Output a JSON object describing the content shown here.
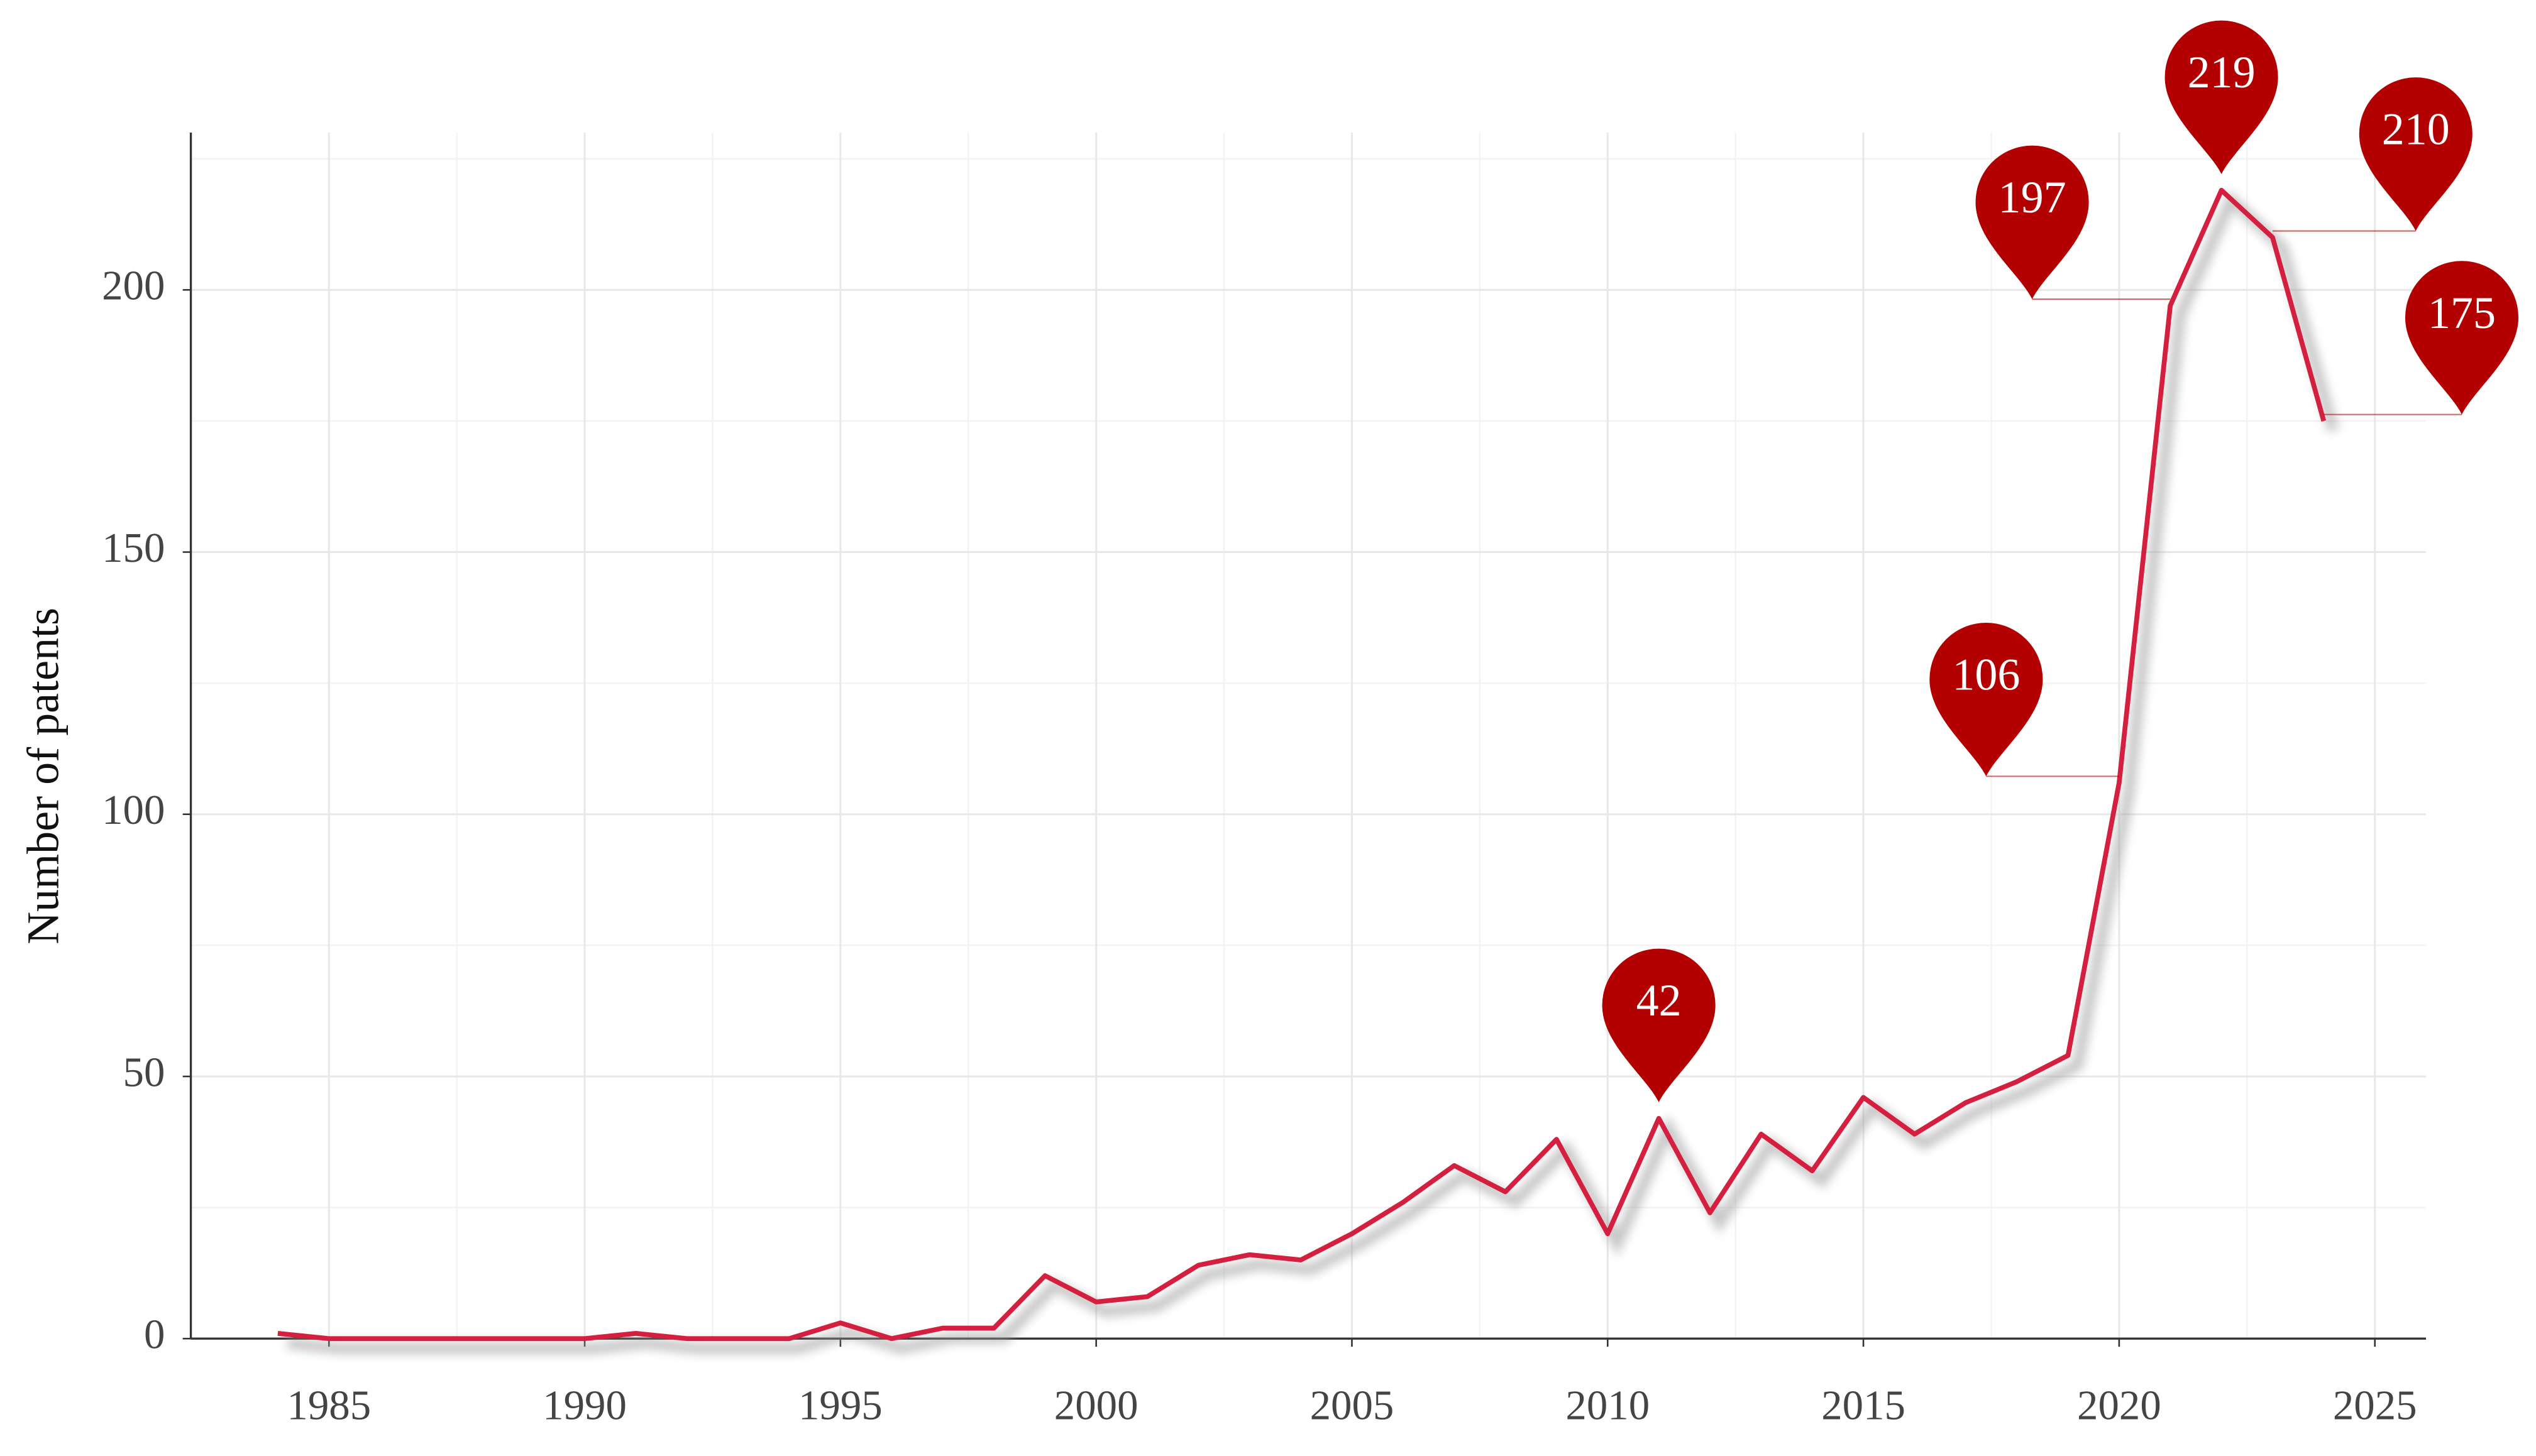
{
  "chart_data": {
    "type": "line",
    "y_label": "Number of patents",
    "x": [
      1984,
      1985,
      1986,
      1987,
      1988,
      1989,
      1990,
      1991,
      1992,
      1993,
      1994,
      1995,
      1996,
      1997,
      1998,
      1999,
      2000,
      2001,
      2002,
      2003,
      2004,
      2005,
      2006,
      2007,
      2008,
      2009,
      2010,
      2011,
      2012,
      2013,
      2014,
      2015,
      2016,
      2017,
      2018,
      2019,
      2020,
      2021,
      2022,
      2023,
      2024
    ],
    "values": [
      1,
      0,
      0,
      0,
      0,
      0,
      0,
      1,
      0,
      0,
      0,
      3,
      0,
      2,
      2,
      12,
      7,
      8,
      14,
      16,
      15,
      20,
      26,
      33,
      28,
      38,
      20,
      42,
      24,
      39,
      32,
      46,
      39,
      45,
      49,
      54,
      106,
      197,
      219,
      210,
      175
    ],
    "color": "#d41f3f",
    "xlim": [
      1982.3,
      2026
    ],
    "ylim": [
      0,
      230
    ],
    "xticks": [
      1985,
      1990,
      1995,
      2000,
      2005,
      2010,
      2015,
      2020,
      2025
    ],
    "yticks": [
      0,
      50,
      100,
      150,
      200
    ],
    "grid": true,
    "annotations": [
      {
        "x": 2011,
        "y": 42
      },
      {
        "x": 2020,
        "y": 106
      },
      {
        "x": 2021,
        "y": 197
      },
      {
        "x": 2022,
        "y": 219
      },
      {
        "x": 2023,
        "y": 210
      },
      {
        "x": 2024,
        "y": 175
      }
    ],
    "annotation_color": "#b30000"
  }
}
